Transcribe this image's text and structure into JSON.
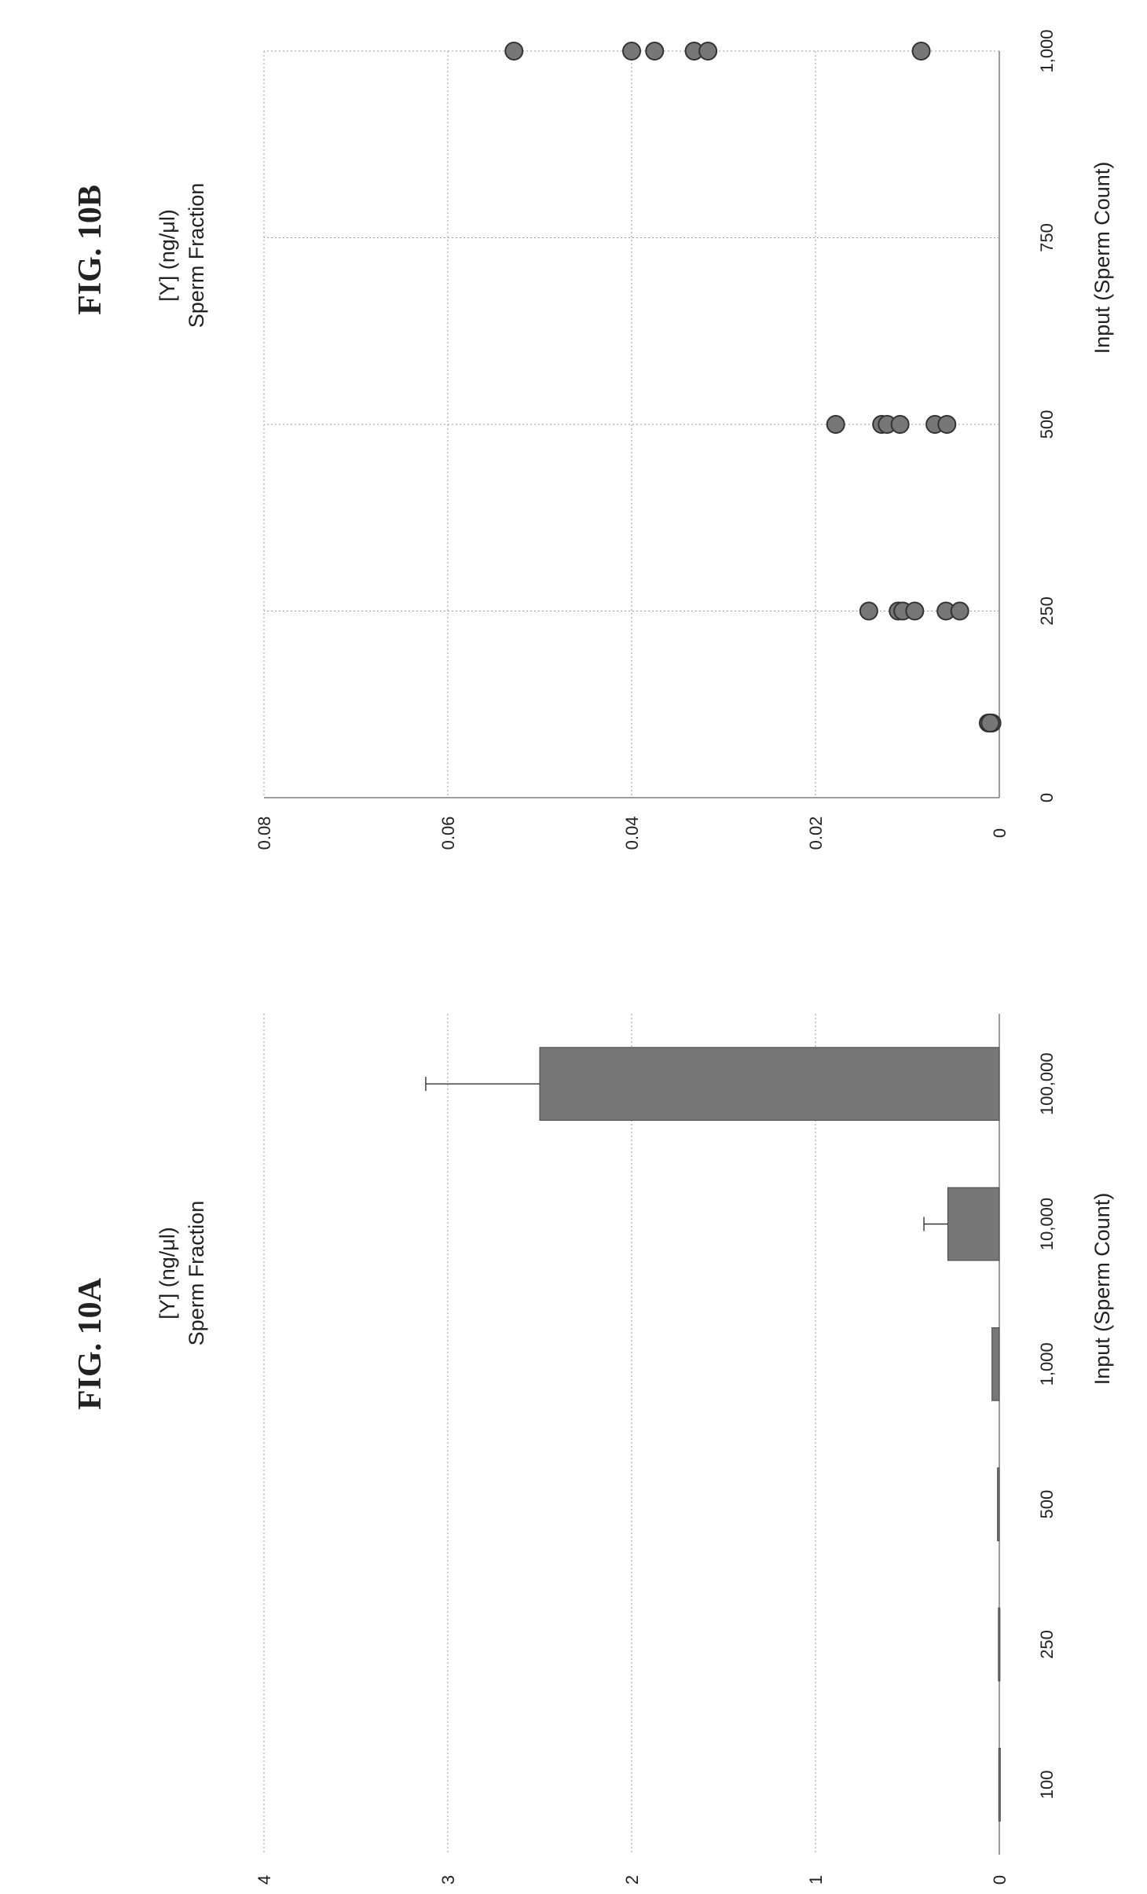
{
  "chart_data": [
    {
      "type": "bar",
      "figure_label": "FIG. 10A",
      "title": "[Y] (ng/μl)",
      "subtitle": "Sperm Fraction",
      "xlabel": "Input (Sperm Count)",
      "ylabel": "",
      "categories": [
        "100",
        "250",
        "500",
        "1,000",
        "10,000",
        "100,000"
      ],
      "values": [
        0.003,
        0.005,
        0.01,
        0.04,
        0.28,
        2.5
      ],
      "error_upper": [
        0.003,
        0.005,
        0.01,
        0.03,
        0.13,
        0.62
      ],
      "ylim": [
        0,
        4
      ],
      "yticks": [
        "0",
        "1",
        "2",
        "3",
        "4"
      ],
      "grid": true
    },
    {
      "type": "scatter",
      "figure_label": "FIG. 10B",
      "title": "[Y] (ng/μl)",
      "subtitle": "Sperm Fraction",
      "xlabel": "Input (Sperm Count)",
      "ylabel": "",
      "xlim": [
        0,
        1000
      ],
      "ylim": [
        0,
        0.08
      ],
      "xticks": [
        "0",
        "250",
        "500",
        "750",
        "1,000"
      ],
      "yticks": [
        "0",
        "0.02",
        "0.04",
        "0.06",
        "0.08"
      ],
      "grid": true,
      "points": [
        {
          "x": 100,
          "y": 0.0008
        },
        {
          "x": 100,
          "y": 0.0012
        },
        {
          "x": 100,
          "y": 0.001
        },
        {
          "x": 250,
          "y": 0.0142
        },
        {
          "x": 250,
          "y": 0.011
        },
        {
          "x": 250,
          "y": 0.0105
        },
        {
          "x": 250,
          "y": 0.0092
        },
        {
          "x": 250,
          "y": 0.0058
        },
        {
          "x": 250,
          "y": 0.0043
        },
        {
          "x": 500,
          "y": 0.0178
        },
        {
          "x": 500,
          "y": 0.0128
        },
        {
          "x": 500,
          "y": 0.0122
        },
        {
          "x": 500,
          "y": 0.0108
        },
        {
          "x": 500,
          "y": 0.007
        },
        {
          "x": 500,
          "y": 0.0057
        },
        {
          "x": 1000,
          "y": 0.0528
        },
        {
          "x": 1000,
          "y": 0.04
        },
        {
          "x": 1000,
          "y": 0.0375
        },
        {
          "x": 1000,
          "y": 0.0332
        },
        {
          "x": 1000,
          "y": 0.0317
        },
        {
          "x": 1000,
          "y": 0.0085
        }
      ]
    }
  ]
}
